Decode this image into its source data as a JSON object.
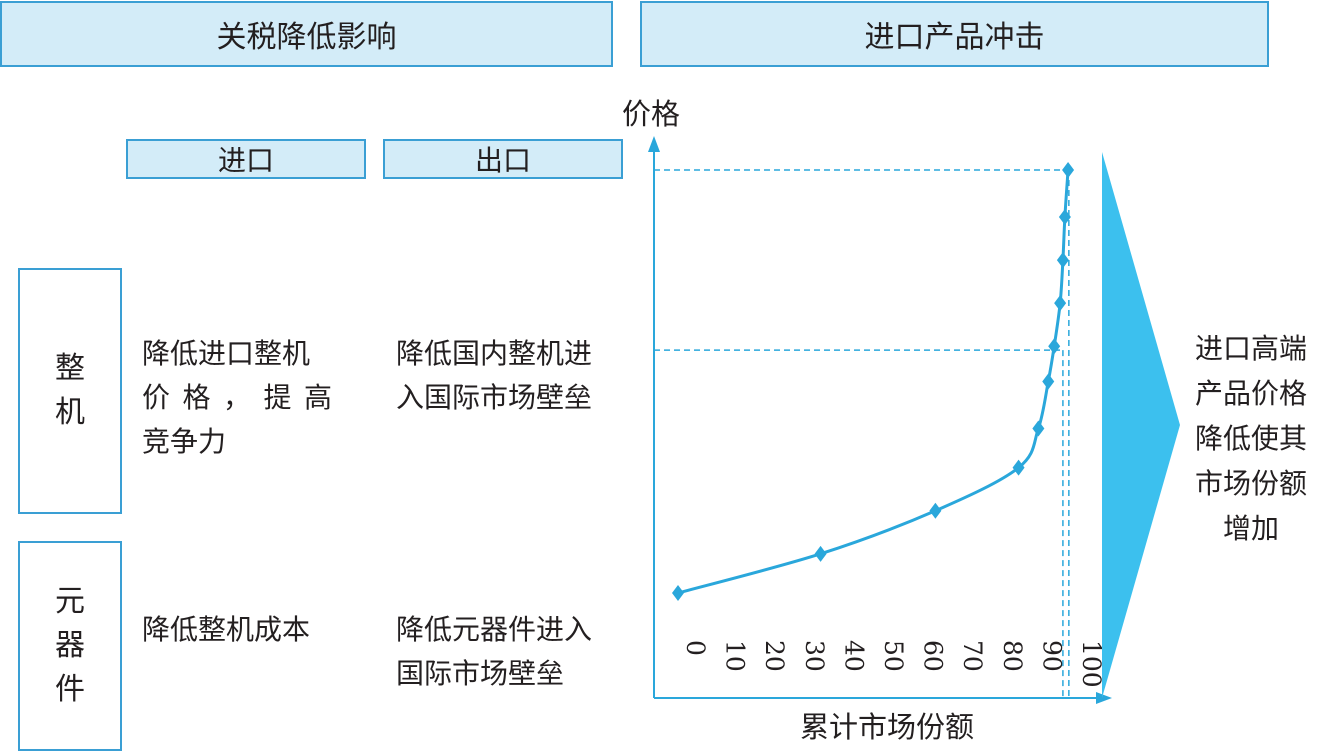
{
  "headers": {
    "left": "关税降低影响",
    "right": "进口产品冲击"
  },
  "columns": {
    "import": "进口",
    "export": "出口"
  },
  "rows": [
    {
      "label_chars": [
        "整",
        "机"
      ],
      "import_lines": [
        "降低进口整机",
        "价格，提高",
        "竞争力"
      ],
      "export_lines": [
        "降低国内整机进",
        "入国际市场壁垒"
      ]
    },
    {
      "label_chars": [
        "元",
        "器",
        "件"
      ],
      "import_lines": [
        "降低整机成本"
      ],
      "export_lines": [
        "降低元器件进入",
        "国际市场壁垒"
      ]
    }
  ],
  "conclusion_lines": [
    "进口高端",
    "产品价格",
    "降低使其",
    "市场份额",
    "增加"
  ],
  "colors": {
    "accent": "#2aa7db",
    "header_fill": "#d3ecf8",
    "border": "#3a9fd4",
    "arrow": "#3cc0ee",
    "text": "#231f20"
  },
  "chart_data": {
    "type": "line",
    "xlabel": "累计市场份额",
    "ylabel": "价格",
    "x_ticks": [
      "0",
      "10",
      "20",
      "30",
      "40",
      "50",
      "60",
      "70",
      "80",
      "90",
      "100"
    ],
    "xlim": [
      0,
      100
    ],
    "grid": false,
    "points": [
      {
        "x": 0,
        "y": 0
      },
      {
        "x": 36,
        "y": 10
      },
      {
        "x": 65,
        "y": 21
      },
      {
        "x": 86,
        "y": 32
      },
      {
        "x": 91,
        "y": 42
      },
      {
        "x": 93.5,
        "y": 54
      },
      {
        "x": 95,
        "y": 63
      },
      {
        "x": 96.5,
        "y": 74
      },
      {
        "x": 97.2,
        "y": 85
      },
      {
        "x": 97.7,
        "y": 96
      },
      {
        "x": 98.5,
        "y": 108
      }
    ],
    "reference_lines": [
      {
        "x": 97.2,
        "y": 62
      },
      {
        "x": 98.7,
        "y": 108
      }
    ]
  }
}
